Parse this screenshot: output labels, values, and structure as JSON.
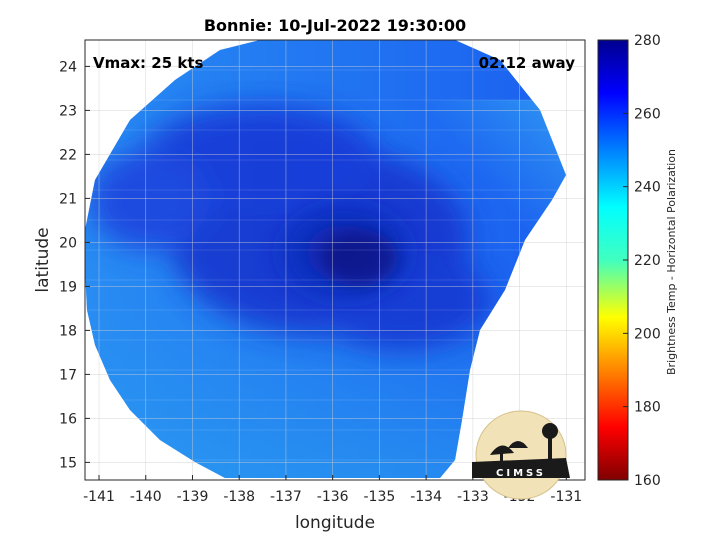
{
  "chart_data": {
    "type": "heatmap",
    "title": "Bonnie: 10-Jul-2022 19:30:00",
    "xlabel": "longitude",
    "ylabel": "latitude",
    "xlim": [
      -141.3,
      -130.6
    ],
    "ylim": [
      14.6,
      24.6
    ],
    "xticks": [
      -141,
      -140,
      -139,
      -138,
      -137,
      -136,
      -135,
      -134,
      -133,
      -132,
      -131
    ],
    "xtick_labels": [
      "-141",
      "-140",
      "-139",
      "-138",
      "-137",
      "-136",
      "-135",
      "-134",
      "-133",
      "-132",
      "-131"
    ],
    "yticks": [
      15,
      16,
      17,
      18,
      19,
      20,
      21,
      22,
      23,
      24
    ],
    "ytick_labels": [
      "15",
      "16",
      "17",
      "18",
      "19",
      "20",
      "21",
      "22",
      "23",
      "24"
    ],
    "grid": true,
    "annotations": {
      "vmax": "Vmax: 25 kts",
      "time_away": "02:12 away"
    },
    "storm_center": {
      "lon": -135.6,
      "lat": 19.9
    },
    "colorbar": {
      "label": "Brightness Temp - Horizontal Polarization",
      "range": [
        160,
        280
      ],
      "ticks": [
        "160",
        "180",
        "200",
        "220",
        "240",
        "260",
        "280"
      ],
      "colormap": [
        "#7f0000",
        "#ff0000",
        "#ffff00",
        "#00ffff",
        "#0000ff",
        "#00008f"
      ]
    },
    "field_description_colors": {
      "core": "#0a1fa8",
      "band": "#1030d0",
      "ambient": "#1a5ef0",
      "warm_edge": "#2fa6f2"
    },
    "logo": "CIMSS"
  }
}
